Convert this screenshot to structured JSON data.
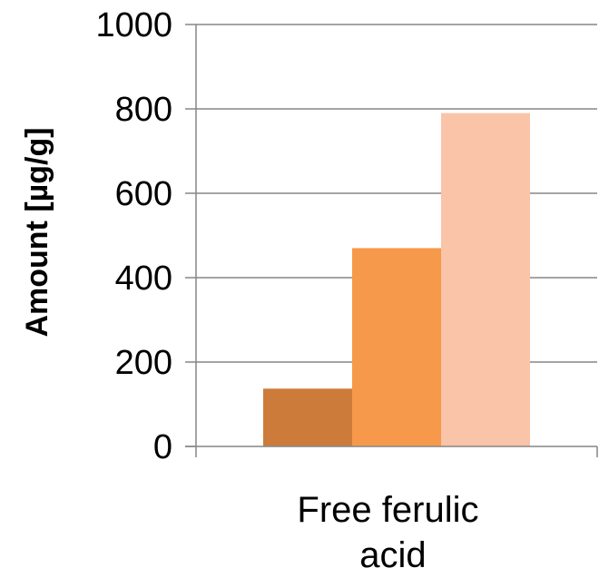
{
  "chart_data": {
    "type": "bar",
    "categories": [
      "Free ferulic acid"
    ],
    "category_label_lines": [
      "Free ferulic",
      "acid"
    ],
    "series": [
      {
        "values": [
          137
        ],
        "color": "#CD7B3B"
      },
      {
        "values": [
          470
        ],
        "color": "#F6994A"
      },
      {
        "values": [
          790
        ],
        "color": "#F9C4A8"
      }
    ],
    "title": "",
    "xlabel": "",
    "ylabel": "Amount [µg/g]",
    "ylim": [
      0,
      1000
    ],
    "yticks": [
      0,
      200,
      400,
      600,
      800,
      1000
    ],
    "ytick_labels": [
      "0",
      "200",
      "400",
      "600",
      "800",
      "1000"
    ],
    "grid": true,
    "legend": "none"
  }
}
